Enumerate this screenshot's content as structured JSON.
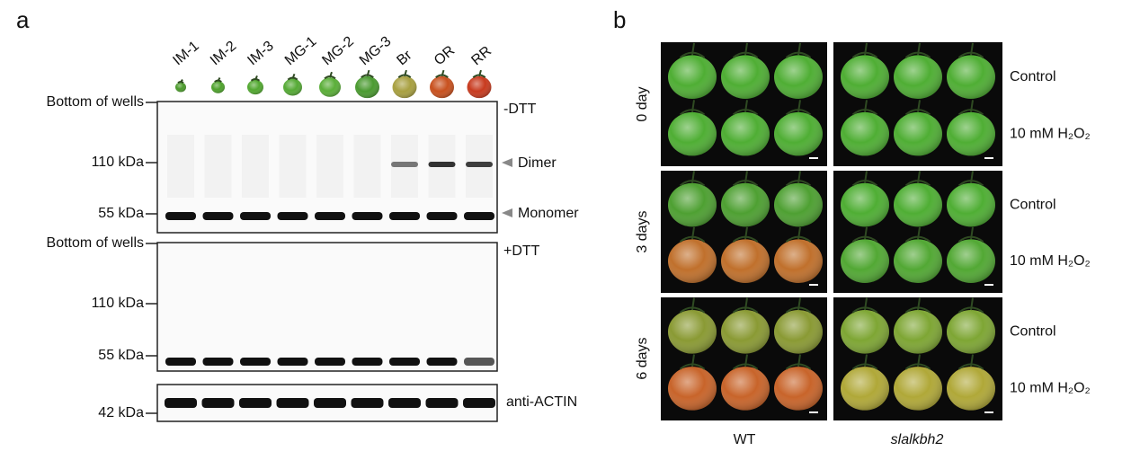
{
  "panel_a": {
    "label": "a",
    "lanes": [
      "IM-1",
      "IM-2",
      "IM-3",
      "MG-1",
      "MG-2",
      "MG-3",
      "Br",
      "OR",
      "RR"
    ],
    "blot_minus": {
      "condition": "-DTT",
      "markers": [
        "Bottom of wells",
        "110 kDa",
        "55 kDa"
      ],
      "bands": [
        "Dimer",
        "Monomer"
      ]
    },
    "blot_plus": {
      "condition": "+DTT",
      "markers": [
        "Bottom of wells",
        "110 kDa",
        "55 kDa"
      ]
    },
    "blot_actin": {
      "antibody": "anti-ACTIN",
      "marker": "42 kDa"
    }
  },
  "panel_b": {
    "label": "b",
    "timepoints": [
      "0 day",
      "3 days",
      "6 days"
    ],
    "treatments": [
      "Control",
      "10 mM H₂O₂"
    ],
    "genotypes": [
      "WT",
      "slalkbh2"
    ]
  }
}
